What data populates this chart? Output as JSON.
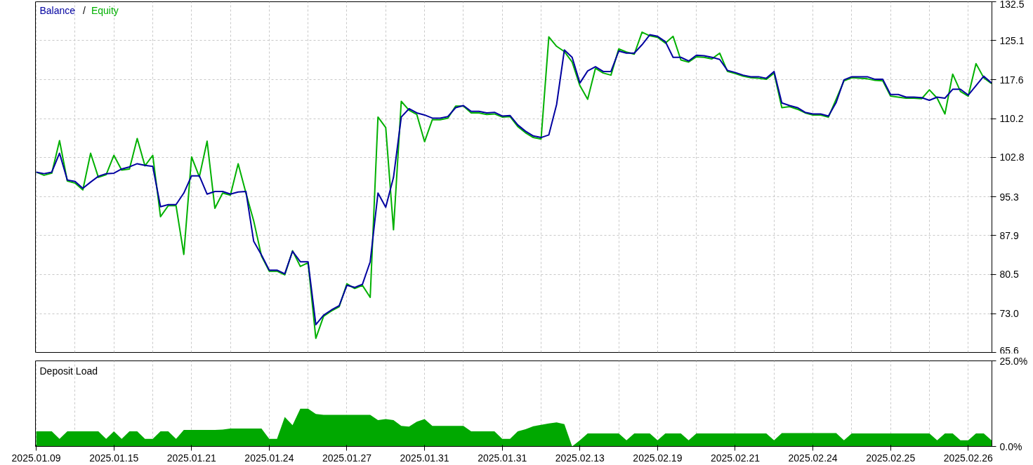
{
  "chart_data": [
    {
      "type": "line",
      "legend": "top left",
      "grid": true,
      "tick_labels": "y",
      "annotations": [
        "/"
      ],
      "categories": [
        null,
        null,
        null,
        null,
        null,
        null,
        null,
        null,
        null,
        null,
        null,
        null,
        null,
        null,
        null,
        null,
        null,
        null,
        null,
        null,
        null,
        null,
        null,
        null,
        null,
        null,
        null,
        null,
        null,
        null,
        null,
        null,
        null,
        null,
        null,
        null,
        null,
        null,
        null,
        null,
        null,
        null,
        null,
        null,
        null,
        null,
        null,
        null,
        null,
        null,
        null,
        null,
        null,
        null,
        null,
        null,
        null,
        null,
        null,
        null,
        null,
        null,
        null,
        null,
        null,
        null,
        null,
        null,
        null,
        null,
        null,
        null,
        null,
        null,
        null,
        null,
        null,
        null,
        null,
        null,
        null,
        null,
        null,
        null,
        null,
        null,
        null,
        null,
        null,
        null,
        null,
        null,
        null,
        null,
        null,
        null,
        null,
        null,
        null,
        null,
        null,
        null,
        null,
        null,
        null,
        null,
        null,
        null,
        null,
        null,
        null,
        null,
        null,
        null,
        null,
        null,
        null,
        null,
        null,
        null,
        null,
        null,
        null,
        null
      ],
      "ylim": [
        65.6,
        132.5
      ],
      "yticks": [
        65.6,
        {
          "value": 73,
          "label": "73.0"
        },
        80.5,
        87.9,
        95.3,
        102.8,
        110.2,
        117.6,
        125.1,
        132.5
      ],
      "series": [
        {
          "name": "Balance",
          "color": "#0000a0",
          "values": [
            100.0,
            99.7,
            100.0,
            103.6,
            98.5,
            98.2,
            96.9,
            98.1,
            99.2,
            99.7,
            99.8,
            100.6,
            101.0,
            101.6,
            101.3,
            101.1,
            93.4,
            93.8,
            93.8,
            96.0,
            99.3,
            99.3,
            95.8,
            96.3,
            96.3,
            95.8,
            96.2,
            96.3,
            86.8,
            84.2,
            81.3,
            81.3,
            80.6,
            84.9,
            82.9,
            82.9,
            70.9,
            72.7,
            73.7,
            74.5,
            78.4,
            78.0,
            78.6,
            82.9,
            96.0,
            93.3,
            99.0,
            110.5,
            112.1,
            111.3,
            110.9,
            110.3,
            110.3,
            110.6,
            112.3,
            112.7,
            111.6,
            111.6,
            111.3,
            111.4,
            110.7,
            110.8,
            109.0,
            107.8,
            106.9,
            106.6,
            107.1,
            112.9,
            123.3,
            121.9,
            117.0,
            119.3,
            120.1,
            119.2,
            119.2,
            123.1,
            122.7,
            122.7,
            124.3,
            126.2,
            125.9,
            124.9,
            121.9,
            121.9,
            121.2,
            122.3,
            122.2,
            121.9,
            121.5,
            119.4,
            119.0,
            118.5,
            118.2,
            118.2,
            117.9,
            119.2,
            113.2,
            112.7,
            112.3,
            111.4,
            111.1,
            111.1,
            110.7,
            113.3,
            117.6,
            118.2,
            118.2,
            118.2,
            117.7,
            117.7,
            114.8,
            114.8,
            114.3,
            114.3,
            114.2,
            113.7,
            114.3,
            114.1,
            115.8,
            115.8,
            114.7,
            116.5,
            118.3,
            117.0
          ]
        },
        {
          "name": "Equity",
          "color": "#00b000",
          "values": [
            100.0,
            99.4,
            99.8,
            106.0,
            98.3,
            97.9,
            96.6,
            103.6,
            99.0,
            99.5,
            103.2,
            100.4,
            100.6,
            106.4,
            101.2,
            103.2,
            91.5,
            93.6,
            93.6,
            84.3,
            102.9,
            99.1,
            105.9,
            93.1,
            96.0,
            95.6,
            101.6,
            96.0,
            90.7,
            84.0,
            81.1,
            81.1,
            80.4,
            85.0,
            82.0,
            82.7,
            68.3,
            72.5,
            73.5,
            74.3,
            78.7,
            77.8,
            78.4,
            76.1,
            110.5,
            108.5,
            89.0,
            113.5,
            111.8,
            111.0,
            105.8,
            110.0,
            110.0,
            110.3,
            112.6,
            112.6,
            111.3,
            111.3,
            111.0,
            111.1,
            110.5,
            110.6,
            108.7,
            107.5,
            106.6,
            106.3,
            125.8,
            124.0,
            123.0,
            121.0,
            116.5,
            113.9,
            119.8,
            118.9,
            118.5,
            123.5,
            122.9,
            122.5,
            126.7,
            126.0,
            125.7,
            124.6,
            125.9,
            121.4,
            121.0,
            122.0,
            121.9,
            121.6,
            122.7,
            119.2,
            118.8,
            118.3,
            118.0,
            117.9,
            117.7,
            118.9,
            112.3,
            112.5,
            112.0,
            111.3,
            110.9,
            110.9,
            110.5,
            113.9,
            117.4,
            118.0,
            117.9,
            117.8,
            117.5,
            117.4,
            114.5,
            114.3,
            114.1,
            114.1,
            114.0,
            115.7,
            114.1,
            111.1,
            118.7,
            115.4,
            114.5,
            120.7,
            118.0,
            116.9
          ]
        }
      ]
    },
    {
      "type": "area",
      "title": "Deposit Load",
      "grid": true,
      "categories": [
        "2025.01.09",
        null,
        null,
        null,
        null,
        null,
        null,
        null,
        null,
        null,
        "2025.01.15",
        null,
        null,
        null,
        null,
        null,
        null,
        null,
        null,
        null,
        "2025.01.21",
        null,
        null,
        null,
        null,
        null,
        null,
        null,
        null,
        null,
        "2025.01.24",
        null,
        null,
        null,
        null,
        null,
        null,
        null,
        null,
        null,
        "2025.01.27",
        null,
        null,
        null,
        null,
        null,
        null,
        null,
        null,
        null,
        "2025.01.31",
        null,
        null,
        null,
        null,
        null,
        null,
        null,
        null,
        null,
        "2025.01.31",
        null,
        null,
        null,
        null,
        null,
        null,
        null,
        null,
        null,
        "2025.02.13",
        null,
        null,
        null,
        null,
        null,
        null,
        null,
        null,
        null,
        "2025.02.19",
        null,
        null,
        null,
        null,
        null,
        null,
        null,
        null,
        null,
        "2025.02.21",
        null,
        null,
        null,
        null,
        null,
        null,
        null,
        null,
        null,
        "2025.02.24",
        null,
        null,
        null,
        null,
        null,
        null,
        null,
        null,
        null,
        "2025.02.25",
        null,
        null,
        null,
        null,
        null,
        null,
        null,
        null,
        null,
        "2025.02.26",
        null,
        null,
        null
      ],
      "ylim": [
        0,
        25
      ],
      "yticks": [
        {
          "value": 0,
          "label": "0.0%"
        },
        {
          "value": 25,
          "label": "25.0%"
        }
      ],
      "series": [
        {
          "color": "#00a800",
          "values": [
            4.4,
            4.4,
            4.4,
            2.2,
            4.4,
            4.4,
            4.4,
            4.4,
            4.4,
            2.2,
            4.4,
            2.2,
            4.4,
            4.4,
            2.2,
            2.2,
            4.4,
            4.4,
            2.2,
            4.8,
            4.8,
            4.8,
            4.8,
            4.8,
            4.9,
            5.2,
            5.2,
            5.2,
            5.2,
            5.2,
            2.2,
            2.2,
            8.6,
            6.2,
            11.0,
            11.0,
            9.5,
            9.2,
            9.2,
            9.2,
            9.2,
            9.2,
            9.2,
            9.2,
            7.7,
            8.0,
            7.7,
            6.0,
            5.8,
            7.2,
            8.0,
            6.0,
            6.0,
            6.0,
            6.0,
            6.0,
            4.4,
            4.4,
            4.4,
            4.4,
            2.2,
            2.2,
            4.4,
            5.0,
            5.9,
            6.3,
            6.7,
            7.0,
            6.5,
            0,
            1.8,
            3.8,
            3.8,
            3.8,
            3.8,
            3.8,
            1.8,
            3.8,
            3.8,
            3.8,
            1.8,
            3.8,
            3.8,
            3.8,
            1.8,
            3.8,
            3.8,
            3.8,
            3.8,
            3.8,
            3.8,
            3.8,
            3.8,
            3.8,
            3.8,
            1.8,
            3.9,
            3.9,
            3.9,
            3.9,
            3.9,
            3.9,
            3.9,
            3.9,
            1.8,
            3.8,
            3.8,
            3.8,
            3.8,
            3.8,
            3.8,
            3.8,
            3.8,
            3.8,
            3.8,
            3.8,
            1.8,
            3.8,
            3.8,
            1.8,
            1.8,
            3.8,
            3.8,
            1.8
          ]
        }
      ]
    }
  ]
}
